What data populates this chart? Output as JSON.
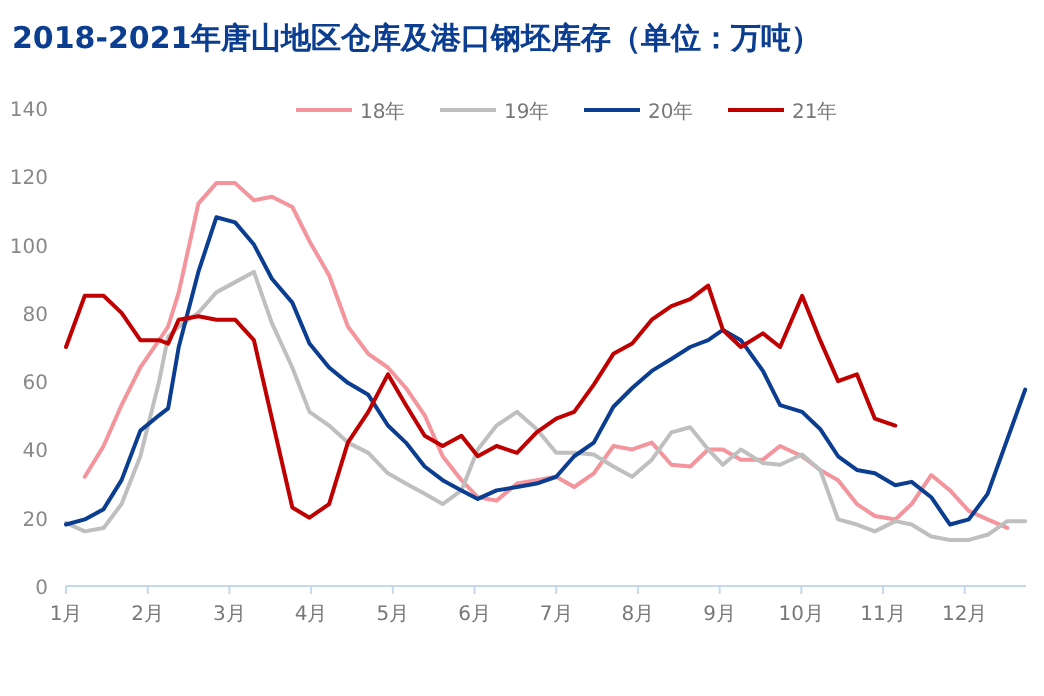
{
  "chart_data": {
    "type": "line",
    "title": "2018-2021年唐山地区仓库及港口钢坯库存（单位：万吨）",
    "xlim": [
      1,
      12.75
    ],
    "xticks": [
      {
        "value": 1,
        "label": "1月"
      },
      {
        "value": 2,
        "label": "2月"
      },
      {
        "value": 3,
        "label": "3月"
      },
      {
        "value": 4,
        "label": "4月"
      },
      {
        "value": 5,
        "label": "5月"
      },
      {
        "value": 6,
        "label": "6月"
      },
      {
        "value": 7,
        "label": "7月"
      },
      {
        "value": 8,
        "label": "8月"
      },
      {
        "value": 9,
        "label": "9月"
      },
      {
        "value": 10,
        "label": "10月"
      },
      {
        "value": 11,
        "label": "11月"
      },
      {
        "value": 12,
        "label": "12月"
      }
    ],
    "ylim": [
      0,
      140
    ],
    "yticks": [
      0,
      20,
      40,
      60,
      80,
      100,
      120,
      140
    ],
    "grid": false,
    "legend": "top",
    "marker": "none",
    "line_style": "solid",
    "series": [
      {
        "name": "18年",
        "color": "#f4949c",
        "x": [
          1.23,
          1.46,
          1.68,
          1.91,
          2.14,
          2.25,
          2.38,
          2.62,
          2.84,
          3.07,
          3.3,
          3.52,
          3.77,
          3.98,
          4.22,
          4.45,
          4.7,
          4.94,
          5.16,
          5.39,
          5.61,
          5.84,
          6.04,
          6.27,
          6.52,
          6.76,
          7.0,
          7.22,
          7.46,
          7.7,
          7.93,
          8.17,
          8.41,
          8.64,
          8.86,
          9.04,
          9.26,
          9.53,
          9.74,
          10.01,
          10.23,
          10.45,
          10.68,
          10.9,
          11.15,
          11.35,
          11.59,
          11.82,
          12.05,
          12.28,
          12.52
        ],
        "values": [
          32,
          41,
          53,
          64,
          72,
          76,
          86,
          112,
          118,
          118,
          113,
          114,
          111,
          101,
          91,
          76,
          68,
          64,
          58,
          50,
          38,
          31,
          26,
          25,
          30,
          31,
          32,
          29,
          33,
          41,
          40,
          42,
          35.5,
          35,
          40,
          40,
          37,
          37,
          41,
          38,
          34,
          31,
          24,
          20.5,
          19.5,
          24,
          32.5,
          28,
          22,
          19.5,
          17
        ]
      },
      {
        "name": "19年",
        "color": "#bfbfbf",
        "x": [
          1.0,
          1.23,
          1.46,
          1.68,
          1.91,
          2.14,
          2.25,
          2.38,
          2.62,
          2.84,
          3.07,
          3.3,
          3.52,
          3.77,
          3.98,
          4.22,
          4.45,
          4.7,
          4.94,
          5.16,
          5.39,
          5.61,
          5.84,
          6.04,
          6.27,
          6.52,
          6.76,
          7.0,
          7.22,
          7.46,
          7.7,
          7.93,
          8.17,
          8.41,
          8.64,
          8.86,
          9.04,
          9.26,
          9.53,
          9.74,
          10.01,
          10.23,
          10.45,
          10.68,
          10.9,
          11.15,
          11.35,
          11.59,
          11.82,
          12.05,
          12.28,
          12.52,
          12.74
        ],
        "values": [
          18.5,
          16,
          17,
          24,
          38,
          60,
          73,
          76,
          80,
          86,
          89,
          92,
          77,
          64,
          51,
          47,
          42,
          39,
          33,
          30,
          27,
          24,
          28,
          40,
          47,
          51,
          46,
          39,
          39,
          38.5,
          35,
          32,
          37,
          45,
          46.5,
          40,
          35.5,
          40,
          36,
          35.5,
          38.5,
          34,
          19.5,
          18,
          16,
          19,
          18,
          14.5,
          13.5,
          13.5,
          15,
          19,
          19
        ]
      },
      {
        "name": "20年",
        "color": "#0b3d91",
        "x": [
          1.0,
          1.23,
          1.46,
          1.68,
          1.91,
          2.14,
          2.25,
          2.38,
          2.62,
          2.84,
          3.07,
          3.3,
          3.52,
          3.77,
          3.98,
          4.22,
          4.45,
          4.7,
          4.94,
          5.16,
          5.39,
          5.61,
          5.84,
          6.04,
          6.27,
          6.52,
          6.76,
          7.0,
          7.22,
          7.46,
          7.7,
          7.93,
          8.17,
          8.41,
          8.64,
          8.86,
          9.04,
          9.26,
          9.53,
          9.74,
          10.01,
          10.23,
          10.45,
          10.68,
          10.9,
          11.15,
          11.35,
          11.59,
          11.82,
          12.05,
          12.28,
          12.74
        ],
        "values": [
          18,
          19.5,
          22.5,
          31,
          45.5,
          50,
          52,
          70,
          92,
          108,
          106.5,
          100,
          90,
          83,
          71,
          64,
          59.5,
          56,
          47,
          42,
          35,
          31,
          28,
          25.5,
          28,
          29,
          30,
          32,
          38,
          42,
          52.5,
          58,
          63,
          66.5,
          70,
          72,
          75,
          72,
          63,
          53,
          51,
          46,
          38,
          34,
          33,
          29.5,
          30.5,
          26,
          18,
          19.5,
          27,
          57.5
        ]
      },
      {
        "name": "21年",
        "color": "#c00000",
        "x": [
          1.0,
          1.23,
          1.46,
          1.68,
          1.91,
          2.14,
          2.25,
          2.38,
          2.62,
          2.84,
          3.07,
          3.3,
          3.77,
          3.98,
          4.22,
          4.45,
          4.7,
          4.94,
          5.16,
          5.39,
          5.61,
          5.84,
          6.04,
          6.27,
          6.52,
          6.76,
          7.0,
          7.22,
          7.46,
          7.7,
          7.93,
          8.17,
          8.41,
          8.64,
          8.86,
          9.04,
          9.26,
          9.53,
          9.74,
          10.01,
          10.23,
          10.45,
          10.68,
          10.9,
          11.15
        ],
        "values": [
          70,
          85,
          85,
          80,
          72,
          72,
          71,
          78,
          79,
          78,
          78,
          72,
          23,
          20,
          24,
          42,
          51,
          62,
          53,
          44,
          41,
          44,
          38,
          41,
          39,
          45,
          49,
          51,
          59,
          68,
          71,
          78,
          82,
          84,
          88,
          75,
          70,
          74,
          70,
          85,
          72,
          60,
          62,
          49,
          47
        ]
      }
    ]
  }
}
